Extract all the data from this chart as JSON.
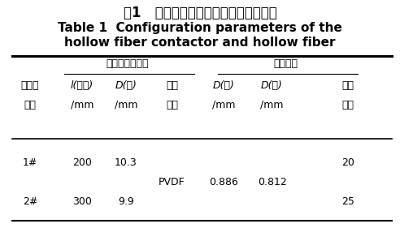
{
  "title_cn": "表1   中空纤维膜接触器及中空纤维参数",
  "title_en_line1": "Table 1  Configuration parameters of the",
  "title_en_line2": "hollow fiber contactor and hollow fiber",
  "group1_label": "中空纤维接触器",
  "group2_label": "中空纤维",
  "header_col0_line1": "接触器",
  "header_col0_line2": "型号",
  "col_labels_line1": [
    "l(有效)",
    "D(内)",
    "薄膜",
    "D(外)",
    "D(内)",
    "膜丝"
  ],
  "col_labels_line2": [
    "/mm",
    "/mm",
    "材料",
    "/mm",
    "/mm",
    "根数"
  ],
  "row1": [
    "1#",
    "200",
    "10.3",
    "",
    "",
    "",
    "20"
  ],
  "row_mid": [
    "",
    "",
    "",
    "PVDF",
    "0.886",
    "0.812",
    ""
  ],
  "row2": [
    "2#",
    "300",
    "9.9",
    "",
    "",
    "",
    "25"
  ],
  "bg_color": "#ffffff",
  "text_color": "#000000",
  "title_cn_fontsize": 12,
  "title_en_fontsize": 11,
  "table_fontsize": 9
}
